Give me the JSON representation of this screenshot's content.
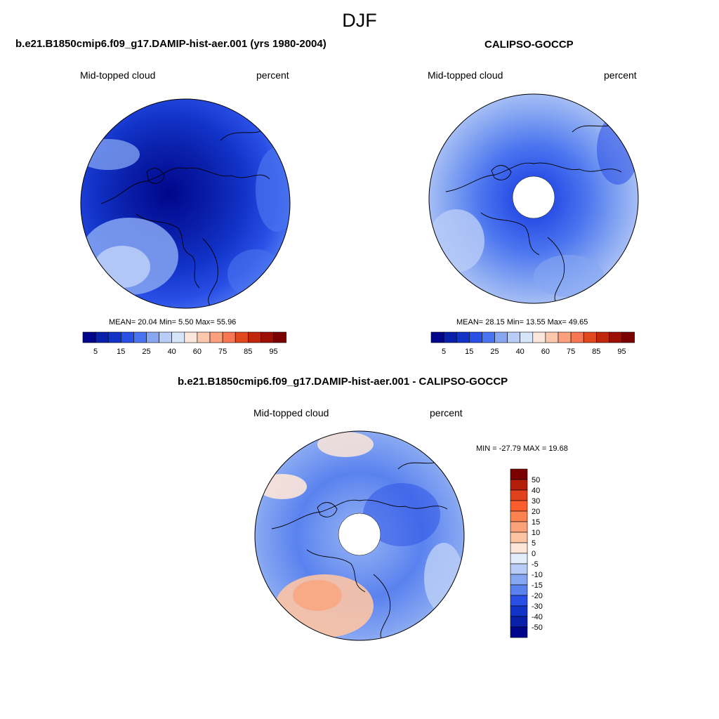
{
  "figure": {
    "season": "DJF"
  },
  "panels": {
    "model": {
      "title": "b.e21.B1850cmip6.f09_g17.DAMIP-hist-aer.001 (yrs 1980-2004)",
      "left_label": "Mid-topped cloud",
      "right_label": "percent",
      "stats": "MEAN=  20.04  Min=   5.50  Max=  55.96",
      "field_note": "mostly 5–25 %, darkest (5) over the central Arctic; lighter (25–40) bands near the lower-left coast"
    },
    "obs": {
      "title": "CALIPSO-GOCCP",
      "left_label": "Mid-topped cloud",
      "right_label": "percent",
      "stats": "MEAN=  28.15  Min=  13.55  Max=  49.65",
      "field_note": "mostly 15–40 %, no data poleward of ~82°N (white hole)"
    },
    "diff": {
      "title": "b.e21.B1850cmip6.f09_g17.DAMIP-hist-aer.001 - CALIPSO-GOCCP",
      "left_label": "Mid-topped cloud",
      "right_label": "percent",
      "minmax": "MIN = -27.79 MAX =  19.68",
      "field_note": "mostly -5 to -20 %, positive 5–10 % patch over the lower-left (North Atlantic / Europe sector)"
    }
  },
  "colorbars": {
    "abs_ticks": [
      "5",
      "15",
      "25",
      "40",
      "60",
      "75",
      "85",
      "95"
    ],
    "abs_colors": [
      "#00068c",
      "#0a1faa",
      "#1233c8",
      "#2a4fe6",
      "#4a74ef",
      "#86a6f2",
      "#b9ccf7",
      "#d7e5fb",
      "#fde7dc",
      "#fcc7ad",
      "#fb9f7c",
      "#f77752",
      "#e2481e",
      "#c0260c",
      "#9b0f05",
      "#7a0000"
    ],
    "diff_ticks": [
      "50",
      "40",
      "30",
      "20",
      "15",
      "10",
      "5",
      "0",
      "-5",
      "-10",
      "-15",
      "-20",
      "-30",
      "-40",
      "-50"
    ],
    "diff_colors": [
      "#7a0000",
      "#b31e0a",
      "#e0421c",
      "#fb5e2c",
      "#fb8350",
      "#fba27a",
      "#fdc4a4",
      "#fde6d8",
      "#e3ecfb",
      "#b9ccf7",
      "#86a6f2",
      "#5a82ef",
      "#2a4fe6",
      "#1233c8",
      "#0a1faa",
      "#00068c"
    ]
  },
  "chart_data": [
    {
      "type": "heatmap",
      "title": "b.e21.B1850cmip6.f09_g17.DAMIP-hist-aer.001 (yrs 1980-2004)",
      "variable": "Mid-topped cloud",
      "units": "percent",
      "projection": "north polar stereographic",
      "levels": [
        5,
        10,
        15,
        20,
        25,
        30,
        40,
        50,
        60,
        70,
        75,
        80,
        85,
        90,
        95
      ],
      "mean": 20.04,
      "min": 5.5,
      "max": 55.96
    },
    {
      "type": "heatmap",
      "title": "CALIPSO-GOCCP",
      "variable": "Mid-topped cloud",
      "units": "percent",
      "projection": "north polar stereographic",
      "levels": [
        5,
        10,
        15,
        20,
        25,
        30,
        40,
        50,
        60,
        70,
        75,
        80,
        85,
        90,
        95
      ],
      "mean": 28.15,
      "min": 13.55,
      "max": 49.65
    },
    {
      "type": "heatmap",
      "title": "b.e21.B1850cmip6.f09_g17.DAMIP-hist-aer.001 - CALIPSO-GOCCP",
      "variable": "Mid-topped cloud",
      "units": "percent",
      "projection": "north polar stereographic",
      "levels": [
        -50,
        -40,
        -30,
        -20,
        -15,
        -10,
        -5,
        0,
        5,
        10,
        15,
        20,
        30,
        40,
        50
      ],
      "min": -27.79,
      "max": 19.68
    }
  ]
}
